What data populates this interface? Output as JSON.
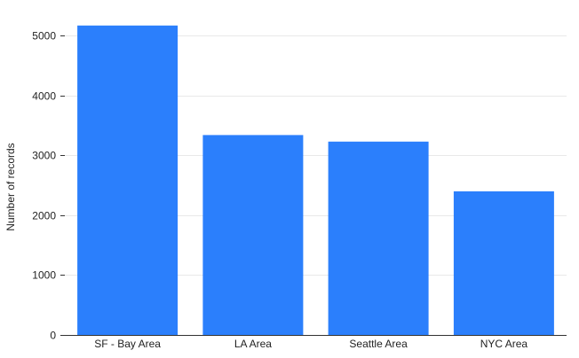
{
  "chart_data": {
    "type": "bar",
    "categories": [
      "SF - Bay Area",
      "LA Area",
      "Seattle Area",
      "NYC Area"
    ],
    "values": [
      5170,
      3340,
      3230,
      2400
    ],
    "title": "",
    "xlabel": "",
    "ylabel": "Number of records",
    "ylim": [
      0,
      5300
    ],
    "yticks": [
      0,
      1000,
      2000,
      3000,
      4000,
      5000
    ],
    "grid": true,
    "legend": "none",
    "bar_color": "#2b7ffc"
  }
}
